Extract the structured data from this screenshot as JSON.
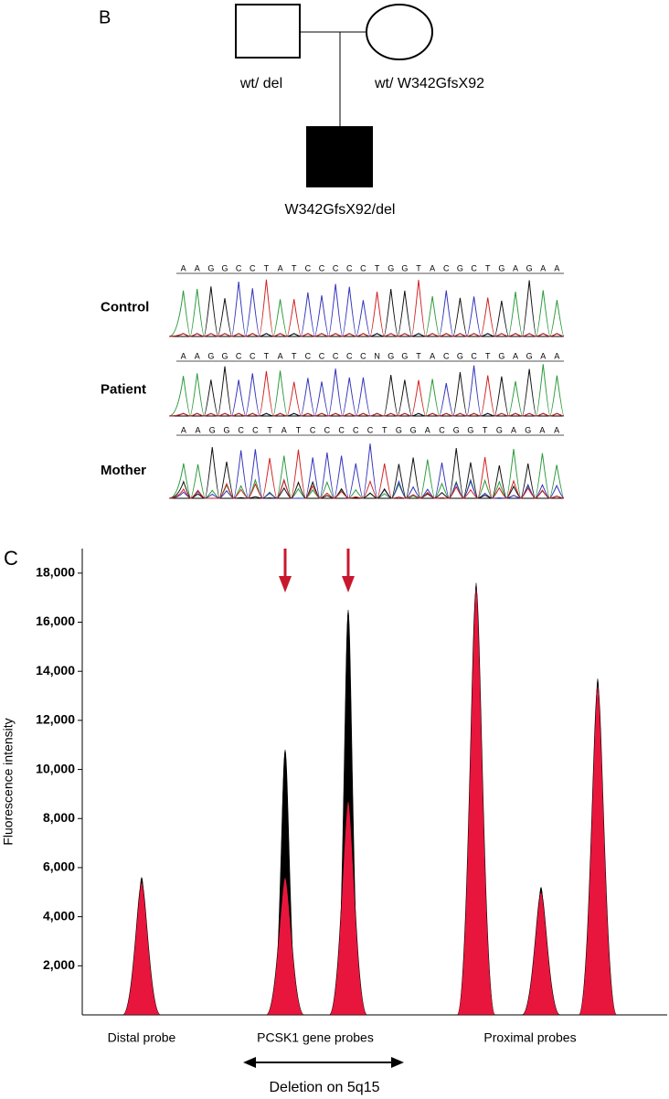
{
  "panel_b": {
    "label": "B",
    "pedigree": {
      "father": "wt/ del",
      "mother": "wt/ W342GfsX92",
      "child": "W342GfsX92/del"
    },
    "sequencing": [
      {
        "label": "Control",
        "sequence": "AAGGCCTATCCCCCTGGTACGCTGAGAA"
      },
      {
        "label": "Patient",
        "sequence": "AAGGCCTATCCCCCNGGTACGCTGAGAA"
      },
      {
        "label": "Mother",
        "sequence": "AAGGCCTATCCCCCTGGACGGTGAGAA"
      }
    ]
  },
  "chart_data": {
    "type": "peaks",
    "panel_label": "C",
    "y_label": "Fluorescence intensity",
    "categories": [
      null,
      null,
      null,
      null,
      null,
      null
    ],
    "series": [
      {
        "color": "#000000",
        "values": [
          5600,
          10800,
          16500,
          17600,
          5200,
          13700
        ]
      },
      {
        "color": "#e8163c",
        "values": [
          5400,
          5600,
          8700,
          17400,
          5000,
          13400
        ]
      }
    ],
    "ylim": [
      0,
      19000
    ],
    "yticks": [
      {
        "value": 2000,
        "label": "2,000"
      },
      {
        "value": 4000,
        "label": "4,000"
      },
      {
        "value": 6000,
        "label": "6,000"
      },
      {
        "value": 8000,
        "label": "8,000"
      },
      {
        "value": 10000,
        "label": "10,000"
      },
      {
        "value": 12000,
        "label": "12,000"
      },
      {
        "value": 14000,
        "label": "14,000"
      },
      {
        "value": 16000,
        "label": "16,000"
      },
      {
        "value": 18000,
        "label": "18,000"
      }
    ],
    "group_labels": [
      "Distal probe",
      "PCSK1 gene probes",
      "Proximal probes"
    ],
    "annotation": "Deletion on 5q15"
  }
}
